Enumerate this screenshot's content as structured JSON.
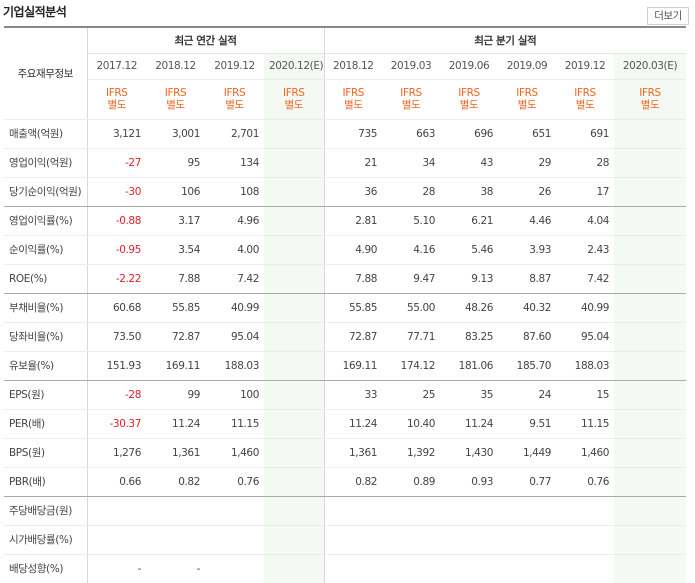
{
  "header": {
    "title": "기업실적분석",
    "more_label": "더보기"
  },
  "table": {
    "row_label_header": "주요재무정보",
    "group_annual": "최근 연간 실적",
    "group_quarterly": "최근 분기 실적",
    "periods": [
      "2017.12",
      "2018.12",
      "2019.12",
      "2020.12(E)",
      "2018.12",
      "2019.03",
      "2019.06",
      "2019.09",
      "2019.12",
      "2020.03(E)"
    ],
    "ifrs_top": "IFRS",
    "ifrs_bottom": "별도",
    "rows": [
      {
        "label": "매출액(억원)",
        "values": [
          "3,121",
          "3,001",
          "2,701",
          "",
          "735",
          "663",
          "696",
          "651",
          "691",
          ""
        ]
      },
      {
        "label": "영업이익(억원)",
        "values": [
          "-27",
          "95",
          "134",
          "",
          "21",
          "34",
          "43",
          "29",
          "28",
          ""
        ]
      },
      {
        "label": "당기순이익(억원)",
        "values": [
          "-30",
          "106",
          "108",
          "",
          "36",
          "28",
          "38",
          "26",
          "17",
          ""
        ]
      },
      {
        "label": "영업이익률(%)",
        "values": [
          "-0.88",
          "3.17",
          "4.96",
          "",
          "2.81",
          "5.10",
          "6.21",
          "4.46",
          "4.04",
          ""
        ]
      },
      {
        "label": "순이익률(%)",
        "values": [
          "-0.95",
          "3.54",
          "4.00",
          "",
          "4.90",
          "4.16",
          "5.46",
          "3.93",
          "2.43",
          ""
        ]
      },
      {
        "label": "ROE(%)",
        "values": [
          "-2.22",
          "7.88",
          "7.42",
          "",
          "7.88",
          "9.47",
          "9.13",
          "8.87",
          "7.42",
          ""
        ]
      },
      {
        "label": "부채비율(%)",
        "values": [
          "60.68",
          "55.85",
          "40.99",
          "",
          "55.85",
          "55.00",
          "48.26",
          "40.32",
          "40.99",
          ""
        ]
      },
      {
        "label": "당좌비율(%)",
        "values": [
          "73.50",
          "72.87",
          "95.04",
          "",
          "72.87",
          "77.71",
          "83.25",
          "87.60",
          "95.04",
          ""
        ]
      },
      {
        "label": "유보율(%)",
        "values": [
          "151.93",
          "169.11",
          "188.03",
          "",
          "169.11",
          "174.12",
          "181.06",
          "185.70",
          "188.03",
          ""
        ]
      },
      {
        "label": "EPS(원)",
        "values": [
          "-28",
          "99",
          "100",
          "",
          "33",
          "25",
          "35",
          "24",
          "15",
          ""
        ]
      },
      {
        "label": "PER(배)",
        "values": [
          "-30.37",
          "11.24",
          "11.15",
          "",
          "11.24",
          "10.40",
          "11.24",
          "9.51",
          "11.15",
          ""
        ]
      },
      {
        "label": "BPS(원)",
        "values": [
          "1,276",
          "1,361",
          "1,460",
          "",
          "1,361",
          "1,392",
          "1,430",
          "1,449",
          "1,460",
          ""
        ]
      },
      {
        "label": "PBR(배)",
        "values": [
          "0.66",
          "0.82",
          "0.76",
          "",
          "0.82",
          "0.89",
          "0.93",
          "0.77",
          "0.76",
          ""
        ]
      },
      {
        "label": "주당배당금(원)",
        "values": [
          "",
          "",
          "",
          "",
          "",
          "",
          "",
          "",
          "",
          ""
        ]
      },
      {
        "label": "시가배당률(%)",
        "values": [
          "",
          "",
          "",
          "",
          "",
          "",
          "",
          "",
          "",
          ""
        ]
      },
      {
        "label": "배당성향(%)",
        "values": [
          "-",
          "-",
          "",
          "",
          "",
          "",
          "",
          "",
          "",
          ""
        ]
      }
    ],
    "group_end_rows": [
      2,
      5,
      8,
      12
    ],
    "estimate_columns": [
      3,
      9
    ],
    "colors": {
      "negative": "#e21e2b",
      "ifrs": "#f1641e",
      "estimate_bg": "#f4faf3"
    }
  }
}
